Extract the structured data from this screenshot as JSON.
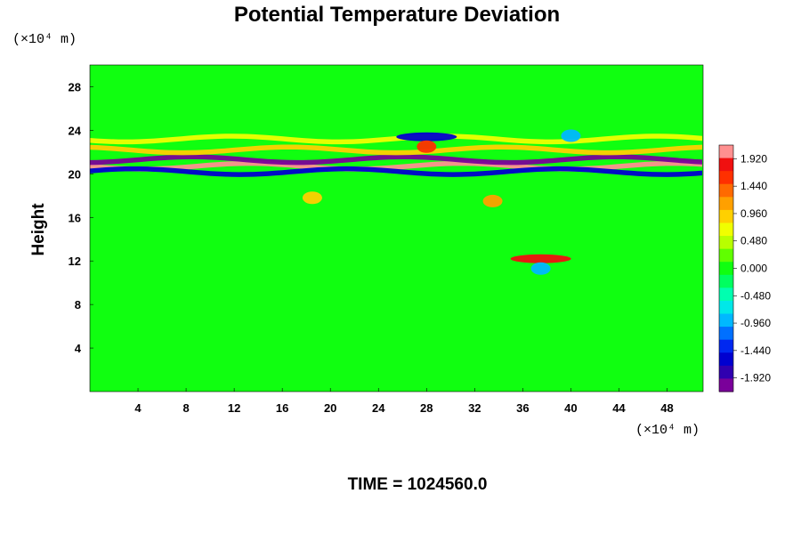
{
  "chart_data": {
    "type": "heatmap",
    "title": "Potential Temperature Deviation",
    "xlabel": "",
    "ylabel": "Height",
    "x_unit": "(×10⁴ m)",
    "y_unit": "(×10⁴ m)",
    "xlim": [
      0,
      51
    ],
    "ylim": [
      0,
      30
    ],
    "xticks": [
      4,
      8,
      12,
      16,
      20,
      24,
      28,
      32,
      36,
      40,
      44,
      48
    ],
    "yticks": [
      4,
      8,
      12,
      16,
      20,
      24,
      28
    ],
    "colorbar": {
      "range": [
        -2.16,
        2.16
      ],
      "ticks": [
        "1.920",
        "1.440",
        "0.960",
        "0.480",
        "0.000",
        "-0.480",
        "-0.960",
        "-1.440",
        "-1.920"
      ],
      "tick_values": [
        1.92,
        1.44,
        0.96,
        0.48,
        0.0,
        -0.48,
        -0.96,
        -1.44,
        -1.92
      ],
      "colors": [
        "#7a009a",
        "#3000b0",
        "#0000d0",
        "#0028f0",
        "#0070ff",
        "#00b8ff",
        "#00e8e8",
        "#00ffb0",
        "#00ff60",
        "#10ff10",
        "#60ff00",
        "#b8ff00",
        "#f0ff00",
        "#ffd000",
        "#ffa000",
        "#ff6a00",
        "#ff3000",
        "#f01010",
        "#ff9090"
      ]
    },
    "features": [
      {
        "type": "band",
        "y": 20.7,
        "value": 2.1
      },
      {
        "type": "band",
        "y": 21.3,
        "value": -2.0
      },
      {
        "type": "band",
        "y": 20.2,
        "value": -1.7
      },
      {
        "type": "band",
        "y": 22.2,
        "value": 0.9
      },
      {
        "type": "band",
        "y": 23.2,
        "value": 0.6
      },
      {
        "type": "blob",
        "x": 28,
        "y": 23.4,
        "value": -1.6
      },
      {
        "type": "blob",
        "x": 28,
        "y": 22.5,
        "value": 1.6
      },
      {
        "type": "blob",
        "x": 40,
        "y": 23.5,
        "value": -1.0
      },
      {
        "type": "blob",
        "x": 33.5,
        "y": 17.5,
        "value": 1.2
      },
      {
        "type": "blob",
        "x": 18.5,
        "y": 17.8,
        "value": 1.0
      },
      {
        "type": "blob",
        "x": 37.5,
        "y": 12.2,
        "value": 1.9
      },
      {
        "type": "blob",
        "x": 37.5,
        "y": 11.3,
        "value": -0.9
      }
    ]
  },
  "time_label": "TIME = 1024560.0"
}
